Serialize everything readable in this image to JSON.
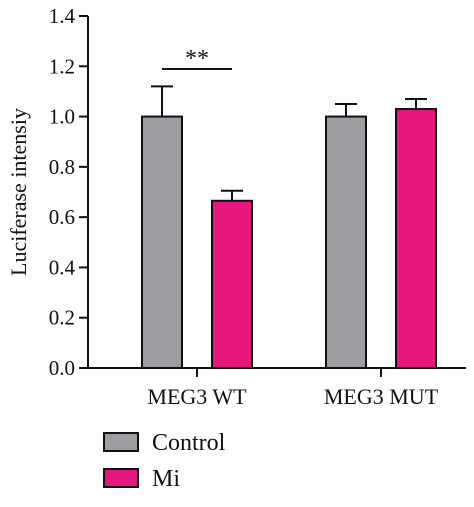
{
  "chart_data": {
    "type": "bar",
    "title": "",
    "xlabel": "",
    "ylabel": "Luciferase intensiy",
    "ylim": [
      0,
      1.4
    ],
    "yticks": [
      "0.0",
      "0.2",
      "0.4",
      "0.6",
      "0.8",
      "1.0",
      "1.2",
      "1.4"
    ],
    "categories": [
      "MEG3 WT",
      "MEG3 MUT"
    ],
    "series": [
      {
        "name": "Control",
        "color": "#9d9ea2",
        "values": [
          1.0,
          1.0
        ],
        "errors": [
          0.12,
          0.05
        ]
      },
      {
        "name": "Mi",
        "color": "#e5177d",
        "values": [
          0.665,
          1.03
        ],
        "errors": [
          0.04,
          0.04
        ]
      }
    ],
    "annotations": [
      {
        "text": "**",
        "category_index": 0
      }
    ],
    "legend_position": "bottom-left",
    "grid": false
  }
}
